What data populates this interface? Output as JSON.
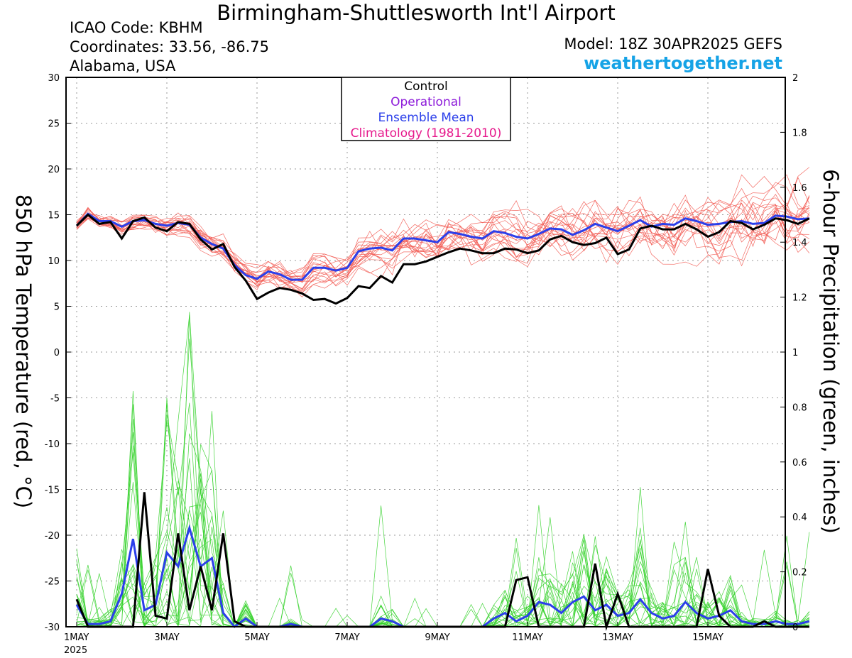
{
  "header": {
    "title": "Birmingham-Shuttlesworth Int'l Airport",
    "icao": "ICAO Code: KBHM",
    "coordinates": "Coordinates: 33.56, -86.75",
    "region": "Alabama, USA",
    "model": "Model: 18Z 30APR2025 GEFS",
    "site": "weathertogether.net"
  },
  "colors": {
    "control": "#000000",
    "operational": "#8c1ad9",
    "ensemble_mean": "#2b3fea",
    "climatology": "#e61a8c",
    "temperature_members": "#f25a52",
    "precip_members": "#34d12a",
    "site_link": "#16a3e6"
  },
  "chart_data": {
    "type": "line",
    "title": "Birmingham-Shuttlesworth Int'l Airport",
    "ylabel_left": "850 hPa Temperature (red, °C)",
    "ylabel_right": "6-hour Precipitation (green, inches)",
    "y_left_range": [
      -30,
      30
    ],
    "y_left_ticks": [
      "30",
      "25",
      "20",
      "15",
      "10",
      "5",
      "0",
      "-5",
      "-10",
      "-15",
      "-20",
      "-25",
      "-30"
    ],
    "y_right_range": [
      0,
      2
    ],
    "y_right_ticks": [
      "2",
      "1.8",
      "1.6",
      "1.4",
      "1.2",
      "1",
      "0.8",
      "0.6",
      "0.4",
      "0.2",
      "0"
    ],
    "x_step_hours": 6,
    "x_start": "1MAY 2025 00Z",
    "x_ticks": [
      {
        "label": "1MAY",
        "sub": "2025",
        "day": 0
      },
      {
        "label": "3MAY",
        "sub": "",
        "day": 2
      },
      {
        "label": "5MAY",
        "sub": "",
        "day": 4
      },
      {
        "label": "7MAY",
        "sub": "",
        "day": 6
      },
      {
        "label": "9MAY",
        "sub": "",
        "day": 8
      },
      {
        "label": "11MAY",
        "sub": "",
        "day": 10
      },
      {
        "label": "13MAY",
        "sub": "",
        "day": 12
      },
      {
        "label": "15MAY",
        "sub": "",
        "day": 14
      }
    ],
    "grid": true,
    "legend": {
      "position": "top-center",
      "entries": [
        {
          "label": "Control",
          "color": "#000000"
        },
        {
          "label": "Operational",
          "color": "#8c1ad9"
        },
        {
          "label": "Ensemble Mean",
          "color": "#2b3fea"
        },
        {
          "label": "Climatology (1981-2010)",
          "color": "#e61a8c"
        }
      ]
    },
    "temperature_control": [
      13.8,
      15.0,
      14.0,
      14.2,
      12.4,
      14.3,
      14.7,
      13.6,
      13.2,
      14.2,
      14.0,
      12.3,
      11.2,
      11.8,
      9.3,
      7.8,
      5.8,
      6.5,
      7.0,
      6.8,
      6.4,
      5.7,
      5.8,
      5.3,
      5.9,
      7.2,
      7.0,
      8.3,
      7.6,
      9.6,
      9.6,
      9.9,
      10.4,
      10.9,
      11.3,
      11.1,
      10.8,
      10.8,
      11.3,
      11.2,
      10.8,
      11.1,
      12.3,
      12.7,
      12.0,
      11.7,
      11.9,
      12.5,
      10.7,
      11.2,
      13.5,
      13.8,
      13.4,
      13.4,
      14.0,
      13.4,
      12.6,
      13.1,
      14.3,
      14.1,
      13.4,
      13.9,
      14.6,
      14.4,
      14.0,
      14.6
    ],
    "temperature_mean": [
      13.8,
      15.1,
      14.3,
      14.3,
      13.7,
      14.3,
      14.4,
      14.0,
      13.8,
      14.1,
      13.9,
      12.5,
      11.8,
      11.3,
      9.5,
      8.4,
      8.0,
      8.8,
      8.5,
      7.9,
      7.9,
      9.2,
      9.2,
      8.9,
      9.2,
      11.0,
      11.3,
      11.4,
      11.1,
      12.4,
      12.4,
      12.2,
      12.0,
      13.1,
      12.9,
      12.6,
      12.4,
      13.2,
      13.0,
      12.6,
      12.4,
      12.9,
      13.5,
      13.4,
      12.8,
      13.3,
      14.0,
      13.6,
      13.2,
      13.8,
      14.4,
      13.7,
      14.0,
      13.9,
      14.6,
      14.3,
      13.9,
      14.0,
      14.2,
      14.3,
      14.0,
      14.1,
      14.9,
      14.8,
      14.5,
      14.6
    ],
    "precip_control": [
      0.1,
      0.0,
      0.0,
      0.0,
      0.0,
      0.0,
      0.49,
      0.04,
      0.03,
      0.34,
      0.06,
      0.22,
      0.06,
      0.34,
      0.02,
      0.0,
      0.0,
      0.0,
      0.0,
      0.0,
      0.0,
      0.0,
      0.0,
      0.0,
      0.0,
      0.0,
      0.0,
      0.0,
      0.0,
      0.0,
      0.0,
      0.0,
      0.0,
      0.0,
      0.0,
      0.0,
      0.0,
      0.0,
      0.0,
      0.0,
      0.0,
      0.18,
      0.2,
      0.0,
      0.0,
      0.0,
      0.0,
      0.0,
      0.0,
      0.24,
      0.0,
      0.05,
      0.0,
      0.14,
      0.08,
      0.0,
      0.0,
      0.0,
      0.0,
      0.0,
      0.0,
      0.21,
      0.02,
      0.0,
      0.0,
      0.0,
      0.0,
      0.0,
      0.01,
      0.0,
      0.0,
      0.0,
      0.0,
      0.0,
      0.0,
      0.0,
      0.0,
      0.0,
      0.0,
      0.0,
      0.0,
      0.0,
      0.0,
      0.0,
      0.0,
      0.0,
      0.0,
      0.0,
      0.0,
      0.0,
      0.0,
      0.0,
      0.0,
      0.0,
      0.0,
      0.0
    ],
    "precip_mean": [
      0.08,
      0.01,
      0.01,
      0.02,
      0.12,
      0.32,
      0.06,
      0.08,
      0.27,
      0.22,
      0.36,
      0.22,
      0.25,
      0.05,
      0.0,
      0.03,
      0.0,
      0.0,
      0.0,
      0.01,
      0.0,
      0.0,
      0.0,
      0.0,
      0.0,
      0.0,
      0.0,
      0.03,
      0.02,
      0.0,
      0.0,
      0.0,
      0.0,
      0.0,
      0.0,
      0.0,
      0.0,
      0.0,
      0.0,
      0.0,
      0.0,
      0.0,
      0.0,
      0.0,
      0.0,
      0.0,
      0.0,
      0.0,
      0.0,
      0.0,
      0.0,
      0.0,
      0.0,
      0.0,
      0.0,
      0.0,
      0.0,
      0.0,
      0.0,
      0.0,
      0.0,
      0.0,
      0.0,
      0.0,
      0.0,
      0.0,
      0.0,
      0.0,
      0.0,
      0.0,
      0.0,
      0.0,
      0.0,
      0.0,
      0.0,
      0.0,
      0.0,
      0.0,
      0.0,
      0.0,
      0.0,
      0.0,
      0.0,
      0.0,
      0.0,
      0.0,
      0.0,
      0.0,
      0.0,
      0.0,
      0.0,
      0.0,
      0.0,
      0.0,
      0.0,
      0.0
    ],
    "precip_mean_tail": [
      0.0,
      0.0,
      0.0,
      0.03,
      0.05,
      0.02,
      0.04,
      0.09,
      0.08,
      0.05,
      0.09,
      0.11,
      0.06,
      0.08,
      0.04,
      0.05,
      0.1,
      0.05,
      0.03,
      0.04,
      0.09,
      0.05,
      0.03,
      0.04,
      0.06,
      0.02,
      0.01,
      0.01,
      0.02,
      0.01,
      0.01,
      0.02
    ],
    "precip_control_tail": [
      0.0,
      0.0,
      0.0,
      0.0,
      0.0,
      0.17,
      0.18,
      0.0,
      0.0,
      0.0,
      0.0,
      0.0,
      0.23,
      0.0,
      0.12,
      0.0,
      0.0,
      0.0,
      0.0,
      0.0,
      0.0,
      0.0,
      0.21,
      0.04,
      0.0,
      0.0,
      0.0,
      0.02,
      0.0,
      0.0,
      0.0,
      0.0
    ]
  }
}
